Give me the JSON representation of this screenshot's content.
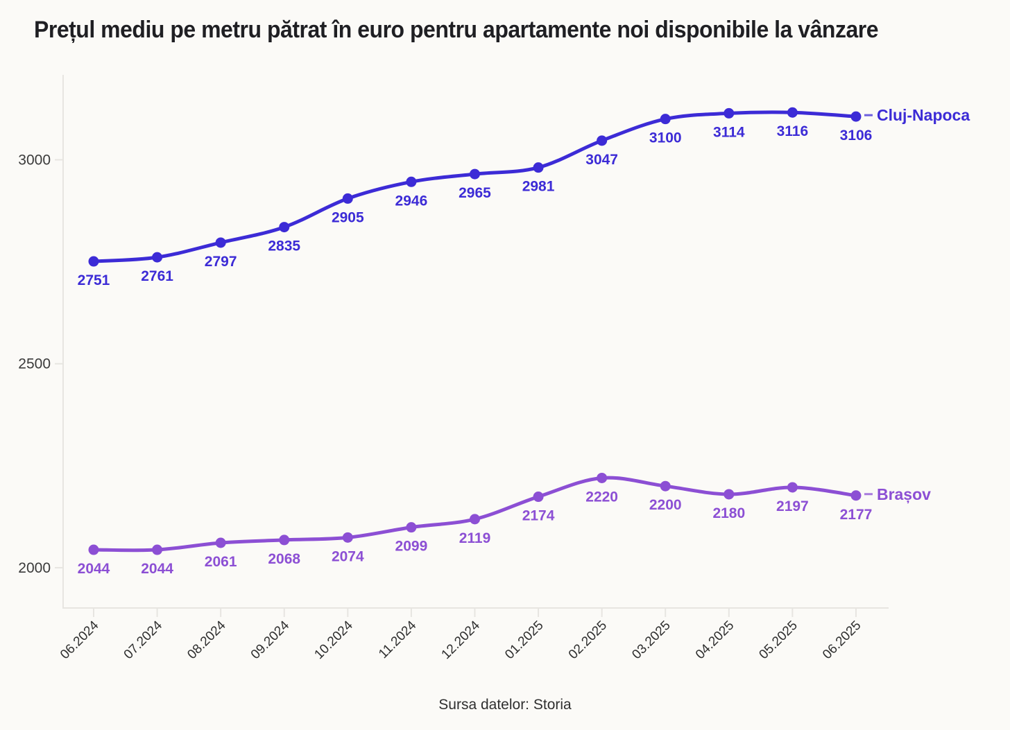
{
  "page": {
    "title": "Prețul mediu pe metru pătrat în euro pentru apartamente noi disponibile la vânzare",
    "source": "Sursa datelor: Storia"
  },
  "chart_data": {
    "type": "line",
    "title": "Prețul mediu pe metru pătrat în euro pentru apartamente noi disponibile la vânzare",
    "source": "Sursa datelor: Storia",
    "categories": [
      "06.2024",
      "07.2024",
      "08.2024",
      "09.2024",
      "10.2024",
      "11.2024",
      "12.2024",
      "01.2025",
      "02.2025",
      "03.2025",
      "04.2025",
      "05.2025",
      "06.2025"
    ],
    "series": [
      {
        "name": "Cluj-Napoca",
        "color": "#3c2bd6",
        "values": [
          2751,
          2761,
          2797,
          2835,
          2905,
          2946,
          2965,
          2981,
          3047,
          3100,
          3114,
          3116,
          3106
        ]
      },
      {
        "name": "Brașov",
        "color": "#8c4fd4",
        "values": [
          2044,
          2044,
          2061,
          2068,
          2074,
          2099,
          2119,
          2174,
          2220,
          2200,
          2180,
          2197,
          2177
        ]
      }
    ],
    "yticks": [
      2000,
      2500,
      3000
    ],
    "ylim": [
      1854,
      3208
    ],
    "xlabel": "",
    "ylabel": "",
    "grid": false,
    "smooth": true,
    "point_markers": true,
    "data_labels": true,
    "legend_position": "line-end",
    "colors": {
      "background": "#fbfaf7",
      "axis": "#e7e5e1",
      "tick_label": "#3a3a3a",
      "title": "#1f1f23",
      "source_text": "#2f2f2f"
    }
  }
}
